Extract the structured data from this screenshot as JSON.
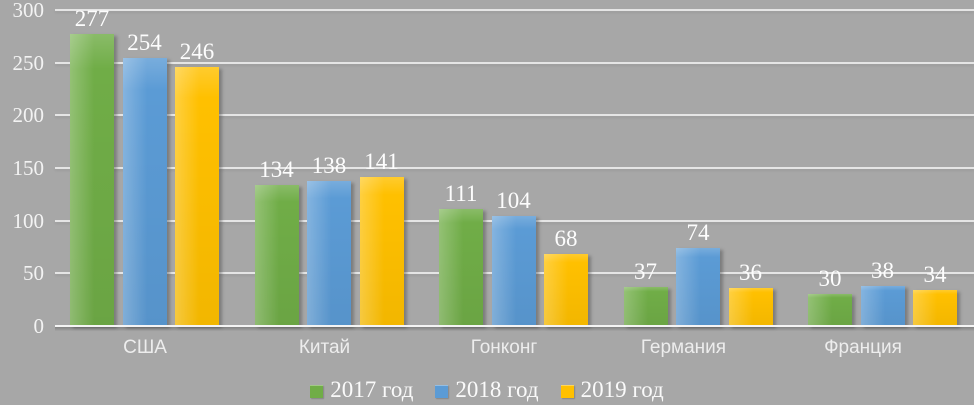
{
  "chart_data": {
    "type": "bar",
    "title": "",
    "xlabel": "",
    "ylabel": "",
    "categories": [
      "США",
      "Китай",
      "Гонконг",
      "Германия",
      "Франция"
    ],
    "series": [
      {
        "name": "2017 год",
        "color": "#70ad47",
        "values": [
          277,
          134,
          111,
          37,
          30
        ]
      },
      {
        "name": "2018 год",
        "color": "#5b9bd5",
        "values": [
          254,
          138,
          104,
          74,
          38
        ]
      },
      {
        "name": "2019 год",
        "color": "#ffc000",
        "values": [
          246,
          141,
          68,
          36,
          34
        ]
      }
    ],
    "ylim": [
      0,
      300
    ],
    "yticks": [
      0,
      50,
      100,
      150,
      200,
      250,
      300
    ],
    "grid": true,
    "legend_position": "bottom",
    "background_color": "#a7a7a7",
    "text_color": "#fdfdfd"
  }
}
